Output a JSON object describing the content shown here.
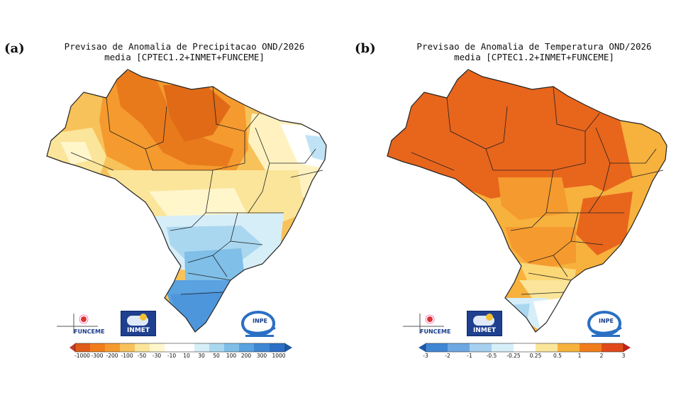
{
  "panels": [
    {
      "letter": "(a)",
      "title_line1": "Previsao de Anomalia de Precipitacao OND/2026",
      "title_line2": "media [CPTEC1.2+INMET+FUNCEME]",
      "colorbar": {
        "labels": [
          "-1000",
          "-300",
          "-200",
          "-100",
          "-50",
          "-30",
          "-10",
          "10",
          "30",
          "50",
          "100",
          "200",
          "300",
          "1000"
        ],
        "colors": [
          "#c0392b",
          "#e05c1a",
          "#f07d1c",
          "#f59a2e",
          "#f7c25a",
          "#fbe59a",
          "#fff6cc",
          "#ffffff",
          "#d6eef8",
          "#aad7f0",
          "#7fbfe8",
          "#5aa2e0",
          "#3f87d4",
          "#2c6fc4",
          "#1f57a8"
        ]
      }
    },
    {
      "letter": "(b)",
      "title_line1": "Previsao de Anomalia de Temperatura OND/2026",
      "title_line2": "media [CPTEC1.2+INMET+FUNCEME]",
      "colorbar": {
        "labels": [
          "-3",
          "-2",
          "-1",
          "-0.5",
          "-0.25",
          "0.25",
          "0.5",
          "1",
          "2",
          "3"
        ],
        "colors": [
          "#1f57a8",
          "#3f87d4",
          "#6ea8e2",
          "#a6d0ef",
          "#d6eef8",
          "#ffffff",
          "#fbe59a",
          "#f7b13d",
          "#f07d1c",
          "#e04a1a",
          "#c0241a"
        ]
      }
    }
  ],
  "logos": {
    "funceme": "FUNCEME",
    "inmet": "INMET",
    "inpe": "INPE"
  }
}
